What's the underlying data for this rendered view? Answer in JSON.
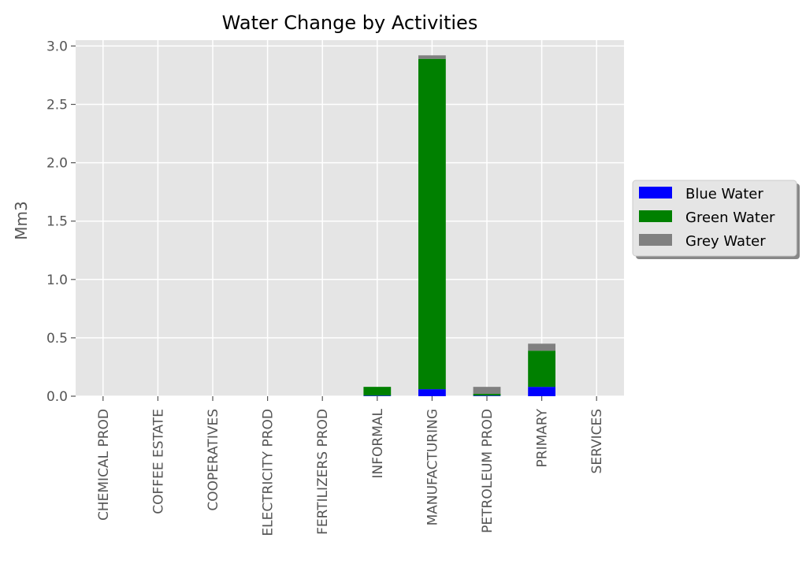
{
  "chart_data": {
    "type": "bar",
    "stacked": true,
    "title": "Water Change by Activities",
    "xlabel": "",
    "ylabel": "Mm3",
    "ylim": [
      0,
      3.05
    ],
    "yticks": [
      "0.0",
      "0.5",
      "1.0",
      "1.5",
      "2.0",
      "2.5",
      "3.0"
    ],
    "grid": true,
    "legend_position": "center-right, outside plot",
    "categories": [
      "CHEMICAL PROD",
      "COFFEE ESTATE",
      "COOPERATIVES",
      "ELECTRICITY PROD",
      "FERTILIZERS PROD",
      "INFORMAL",
      "MANUFACTURING",
      "PETROLEUM PROD",
      "PRIMARY",
      "SERVICES"
    ],
    "series": [
      {
        "name": "Blue Water",
        "color": "#0000ff",
        "values": [
          0,
          0,
          0,
          0,
          0,
          0.005,
          0.06,
          0.005,
          0.08,
          0
        ]
      },
      {
        "name": "Green Water",
        "color": "#008000",
        "values": [
          0,
          0,
          0,
          0,
          0,
          0.075,
          2.83,
          0.015,
          0.31,
          0
        ]
      },
      {
        "name": "Grey Water",
        "color": "#808080",
        "values": [
          0,
          0,
          0,
          0,
          0,
          0,
          0.03,
          0.06,
          0.06,
          0
        ]
      }
    ]
  }
}
